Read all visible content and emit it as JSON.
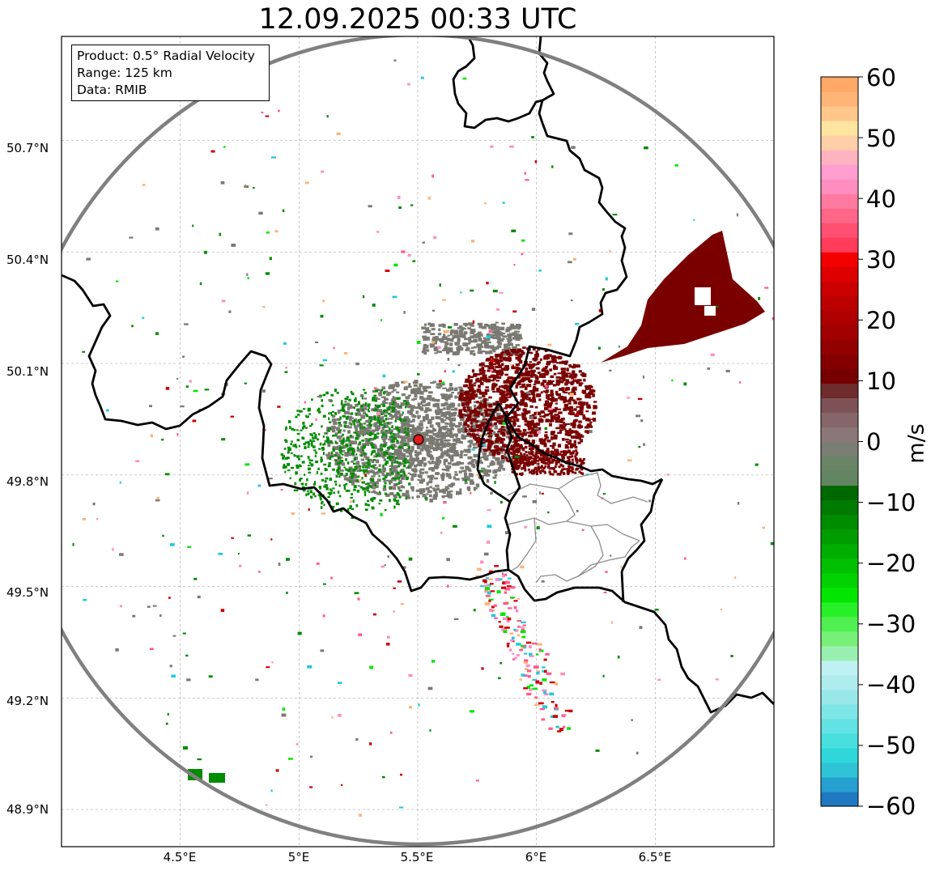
{
  "title": "12.09.2025 00:33 UTC",
  "info": {
    "product": "Product: 0.5° Radial Velocity",
    "range": "Range: 125 km",
    "data": "Data: RMIB"
  },
  "axes": {
    "lat_labels": [
      "50.7°N",
      "50.4°N",
      "50.1°N",
      "49.8°N",
      "49.5°N",
      "49.2°N",
      "48.9°N"
    ],
    "lon_labels": [
      "4.5°E",
      "5°E",
      "5.5°E",
      "6°E",
      "6.5°E"
    ],
    "lat_values": [
      50.7,
      50.4,
      50.1,
      49.8,
      49.5,
      49.2,
      48.9
    ],
    "lon_values": [
      4.5,
      5.0,
      5.5,
      6.0,
      6.5
    ],
    "lat_range": [
      48.8,
      50.98
    ],
    "lon_range": [
      4.0,
      7.0
    ]
  },
  "radar": {
    "site": {
      "lon": 5.505,
      "lat": 49.914
    },
    "range_km": 125,
    "range_ring_color": "#808080",
    "site_color": "#e21b1b"
  },
  "colorbar": {
    "label": "m/s",
    "vmin": -60,
    "vmax": 60,
    "ticks": [
      "60",
      "50",
      "40",
      "30",
      "20",
      "10",
      "0",
      "−10",
      "−20",
      "−30",
      "−40",
      "−50",
      "−60"
    ],
    "colors_bottom_to_top": [
      "#1f78c0",
      "#25a0d0",
      "#2ec4d6",
      "#2ed8da",
      "#48dede",
      "#62e2e2",
      "#7ee6e6",
      "#98e8ea",
      "#aeecee",
      "#bff0f2",
      "#98f0b0",
      "#78f078",
      "#50f050",
      "#28f028",
      "#00e600",
      "#00d200",
      "#00c000",
      "#00ae00",
      "#009c00",
      "#008c00",
      "#007a00",
      "#006800",
      "#628562",
      "#6a8466",
      "#7a7e72",
      "#8a7878",
      "#86666a",
      "#7c5256",
      "#6e2c2c",
      "#760000",
      "#840000",
      "#920000",
      "#a00000",
      "#ae0000",
      "#bc0000",
      "#cc0000",
      "#de0000",
      "#f20000",
      "#ff3c5a",
      "#ff5072",
      "#ff6688",
      "#ff7aa0",
      "#ff8ec0",
      "#ff9ed0",
      "#ffb2c0",
      "#ffd0a8",
      "#ffe4a0",
      "#ffc88a",
      "#ffb478",
      "#ffa868"
    ]
  },
  "echo_colors": {
    "approaching": "#008c00",
    "stationary": "#7a7a72",
    "receding": "#7a0000",
    "speckle": [
      "#ff5a8c",
      "#23c8dc",
      "#ffb478",
      "#00e600",
      "#ff8ec0",
      "#cc0000"
    ]
  }
}
